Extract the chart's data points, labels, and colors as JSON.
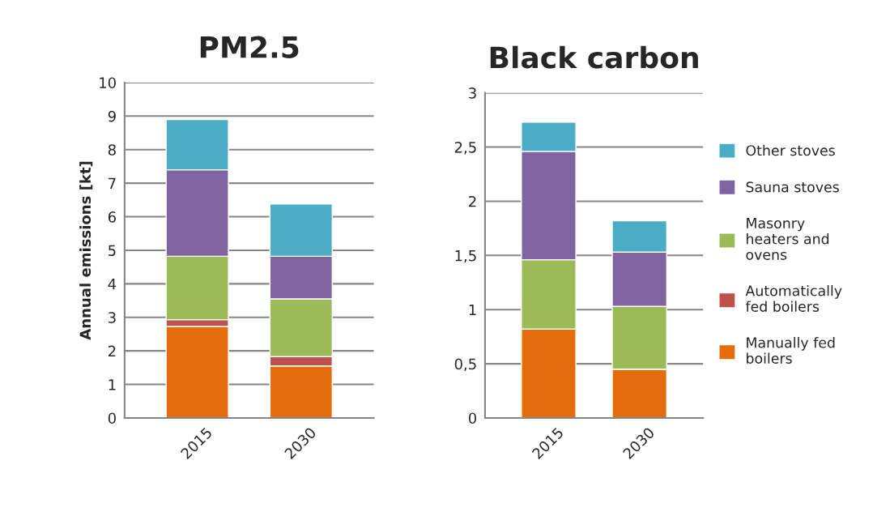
{
  "chart_data": [
    {
      "type": "bar",
      "title": "PM2.5",
      "ylabel": "Annual emissions [kt]",
      "categories": [
        "2015",
        "2030"
      ],
      "stacked": true,
      "ylim": [
        0,
        10
      ],
      "yticks": [
        0,
        1,
        2,
        3,
        4,
        5,
        6,
        7,
        8,
        9,
        10
      ],
      "grid": "y",
      "legend": false,
      "series": [
        {
          "color": "#e46c0a",
          "values": [
            2.73,
            1.55
          ]
        },
        {
          "color": "#c0504d",
          "values": [
            0.2,
            0.28
          ]
        },
        {
          "color": "#9bbb59",
          "values": [
            1.89,
            1.72
          ]
        },
        {
          "color": "#8064a2",
          "values": [
            2.58,
            1.27
          ]
        },
        {
          "color": "#4bacc6",
          "values": [
            1.5,
            1.56
          ]
        }
      ]
    },
    {
      "type": "bar",
      "title": "Black carbon",
      "categories": [
        "2015",
        "2030"
      ],
      "stacked": true,
      "ylim": [
        0,
        3
      ],
      "yticks": [
        0,
        {
          "value": 0.5,
          "label": "0,5"
        },
        1,
        {
          "value": 1.5,
          "label": "1,5"
        },
        2,
        {
          "value": 2.5,
          "label": "2,5"
        },
        3
      ],
      "grid": "y",
      "legend": "right",
      "series": [
        {
          "name": "Manually fed boilers",
          "color": "#e46c0a",
          "values": [
            0.82,
            0.45
          ]
        },
        {
          "name": "Automatically fed boilers",
          "color": "#c0504d",
          "values": [
            0,
            0
          ]
        },
        {
          "name": "Masonry heaters and ovens",
          "color": "#9bbb59",
          "values": [
            0.64,
            0.58
          ]
        },
        {
          "name": "Sauna stoves",
          "color": "#8064a2",
          "values": [
            1.0,
            0.5
          ]
        },
        {
          "name": "Other stoves",
          "color": "#4bacc6",
          "values": [
            0.27,
            0.29
          ]
        }
      ]
    }
  ]
}
